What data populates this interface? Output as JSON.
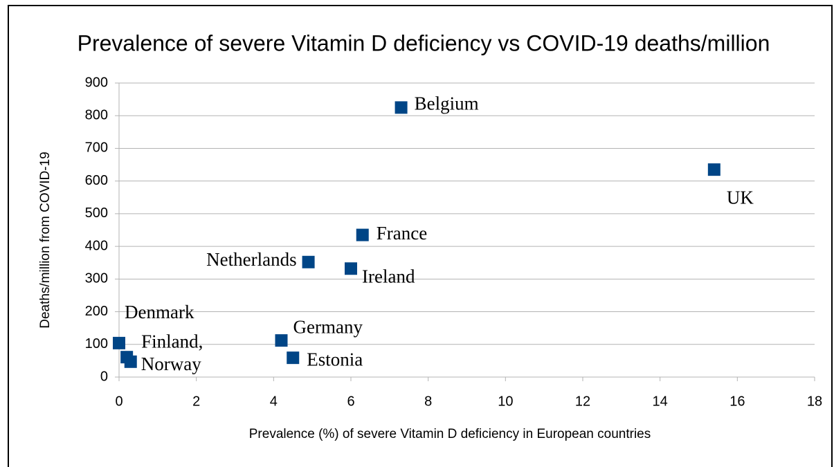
{
  "chart_data": {
    "type": "scatter",
    "title": "Prevalence of severe Vitamin D deficiency vs COVID-19 deaths/million",
    "x_label": "Prevalence (%) of severe Vitamin D deficiency in European countries",
    "y_label": "Deaths/million from COVID-19",
    "x": [
      7.3,
      15.4,
      6.3,
      4.9,
      6.0,
      4.2,
      4.5,
      0,
      0.2,
      0.3
    ],
    "series": [
      {
        "color": "#004586",
        "values": [
          825,
          635,
          435,
          352,
          332,
          112,
          59,
          104,
          61,
          47
        ]
      }
    ],
    "point_labels": [
      "Belgium",
      "UK",
      "France",
      "Netherlands",
      "Ireland",
      "Germany",
      "Estonia",
      "Denmark",
      "Finland,",
      "Norway"
    ],
    "xlim": [
      0,
      18
    ],
    "xticks": [
      0,
      2,
      4,
      6,
      8,
      10,
      12,
      14,
      16,
      18
    ],
    "ylim": [
      0,
      900
    ],
    "yticks": [
      0,
      100,
      200,
      300,
      400,
      500,
      600,
      700,
      800,
      900
    ],
    "grid": true
  }
}
